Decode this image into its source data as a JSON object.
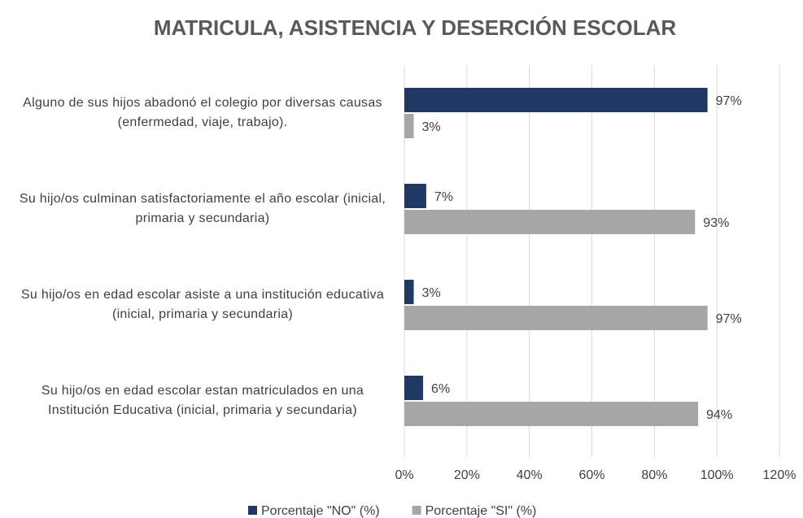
{
  "chart_data": {
    "type": "barh",
    "title": "MATRICULA, ASISTENCIA Y DESERCIÓN ESCOLAR",
    "categories": [
      "Alguno de sus hijos abadonó el colegio por diversas causas (enfermedad, viaje, trabajo).",
      "Su hijo/os culminan satisfactoriamente el año escolar (inicial, primaria y secundaria)",
      "Su hijo/os en edad escolar asiste a una institución educativa (inicial, primaria y secundaria)",
      "Su hijo/os en edad escolar estan matriculados en una Institución Educativa (inicial, primaria y secundaria)"
    ],
    "series": [
      {
        "name": "Porcentaje \"NO\" (%)",
        "color": "#203864",
        "values": [
          97,
          7,
          3,
          6
        ],
        "value_labels": [
          "97%",
          "7%",
          "3%",
          "6%"
        ]
      },
      {
        "name": "Porcentaje \"SI\" (%)",
        "color": "#a6a6a6",
        "values": [
          3,
          93,
          97,
          94
        ],
        "value_labels": [
          "3%",
          "93%",
          "97%",
          "94%"
        ]
      }
    ],
    "xlim": [
      0,
      120
    ],
    "xticks": [
      {
        "value": 0,
        "label": "0%"
      },
      {
        "value": 20,
        "label": "20%"
      },
      {
        "value": 40,
        "label": "40%"
      },
      {
        "value": 60,
        "label": "60%"
      },
      {
        "value": 80,
        "label": "80%"
      },
      {
        "value": 100,
        "label": "100%"
      },
      {
        "value": 120,
        "label": "120%"
      }
    ],
    "grid": true,
    "legend": "bottom"
  }
}
